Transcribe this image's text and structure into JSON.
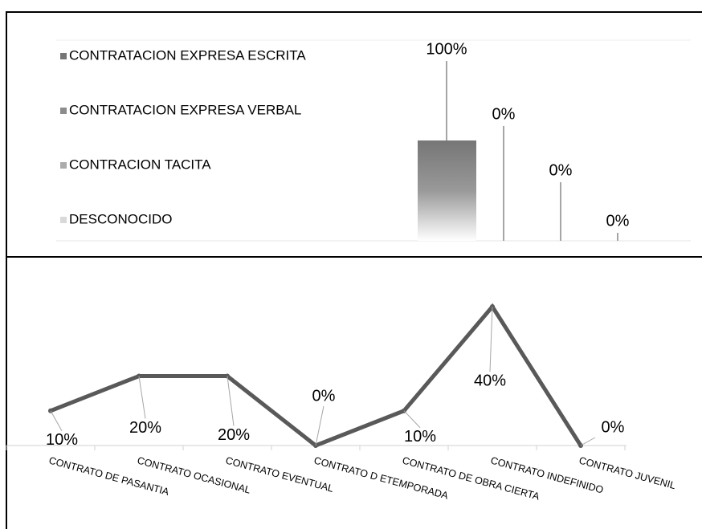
{
  "chart_data": [
    {
      "type": "bar",
      "categories": [
        "CONTRATACION EXPRESA ESCRITA",
        "CONTRATACION EXPRESA VERBAL",
        "CONTRACION TACITA",
        "DESCONOCIDO"
      ],
      "values": [
        100,
        0,
        0,
        0
      ],
      "value_labels": [
        "100%",
        "0%",
        "0%",
        "0%"
      ],
      "colors": [
        "#767676",
        "#8c8c8c",
        "#ababab",
        "#d9d9d9"
      ],
      "ylim": [
        0,
        200
      ]
    },
    {
      "type": "line",
      "categories": [
        "CONTRATO DE PASANTIA",
        "CONTRATO OCASIONAL",
        "CONTRATO EVENTUAL",
        "CONTRATO D ETEMPORADA",
        "CONTRATO DE OBRA CIERTA",
        "CONTRATO INDEFINIDO",
        "CONTRATO JUVENIL"
      ],
      "values": [
        10,
        20,
        20,
        0,
        10,
        40,
        0
      ],
      "value_labels": [
        "10%",
        "20%",
        "20%",
        "0%",
        "10%",
        "40%",
        "0%"
      ],
      "color": "#595959",
      "ylim": [
        0,
        40
      ]
    }
  ]
}
